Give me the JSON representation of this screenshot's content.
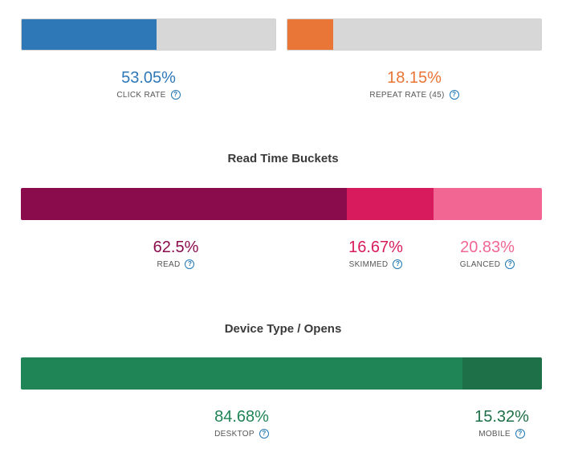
{
  "top": {
    "click_rate": {
      "value": "53.05%",
      "label": "CLICK RATE",
      "fill_fraction": 0.5305,
      "color": "#2e78b7",
      "track_color": "#d7d7d7"
    },
    "repeat_rate": {
      "value": "18.15%",
      "label": "REPEAT RATE (45)",
      "fill_fraction": 0.1815,
      "color": "#e97536",
      "track_color": "#d7d7d7"
    }
  },
  "read_time": {
    "title": "Read Time Buckets",
    "segments": [
      {
        "key": "read",
        "value": "62.5%",
        "label": "READ",
        "fraction": 0.625,
        "color": "#8b0c4d"
      },
      {
        "key": "skimmed",
        "value": "16.67%",
        "label": "SKIMMED",
        "fraction": 0.1667,
        "color": "#d81b5d"
      },
      {
        "key": "glanced",
        "value": "20.83%",
        "label": "GLANCED",
        "fraction": 0.2083,
        "color": "#f26693"
      }
    ]
  },
  "device": {
    "title": "Device Type / Opens",
    "segments": [
      {
        "key": "desktop",
        "value": "84.68%",
        "label": "DESKTOP",
        "fraction": 0.8468,
        "color": "#1f8456"
      },
      {
        "key": "mobile",
        "value": "15.32%",
        "label": "MOBILE",
        "fraction": 0.1532,
        "color": "#1d7047"
      }
    ]
  },
  "help_icon": "question-circle-icon",
  "help_glyph": "?",
  "help_color": "#1f77b4"
}
